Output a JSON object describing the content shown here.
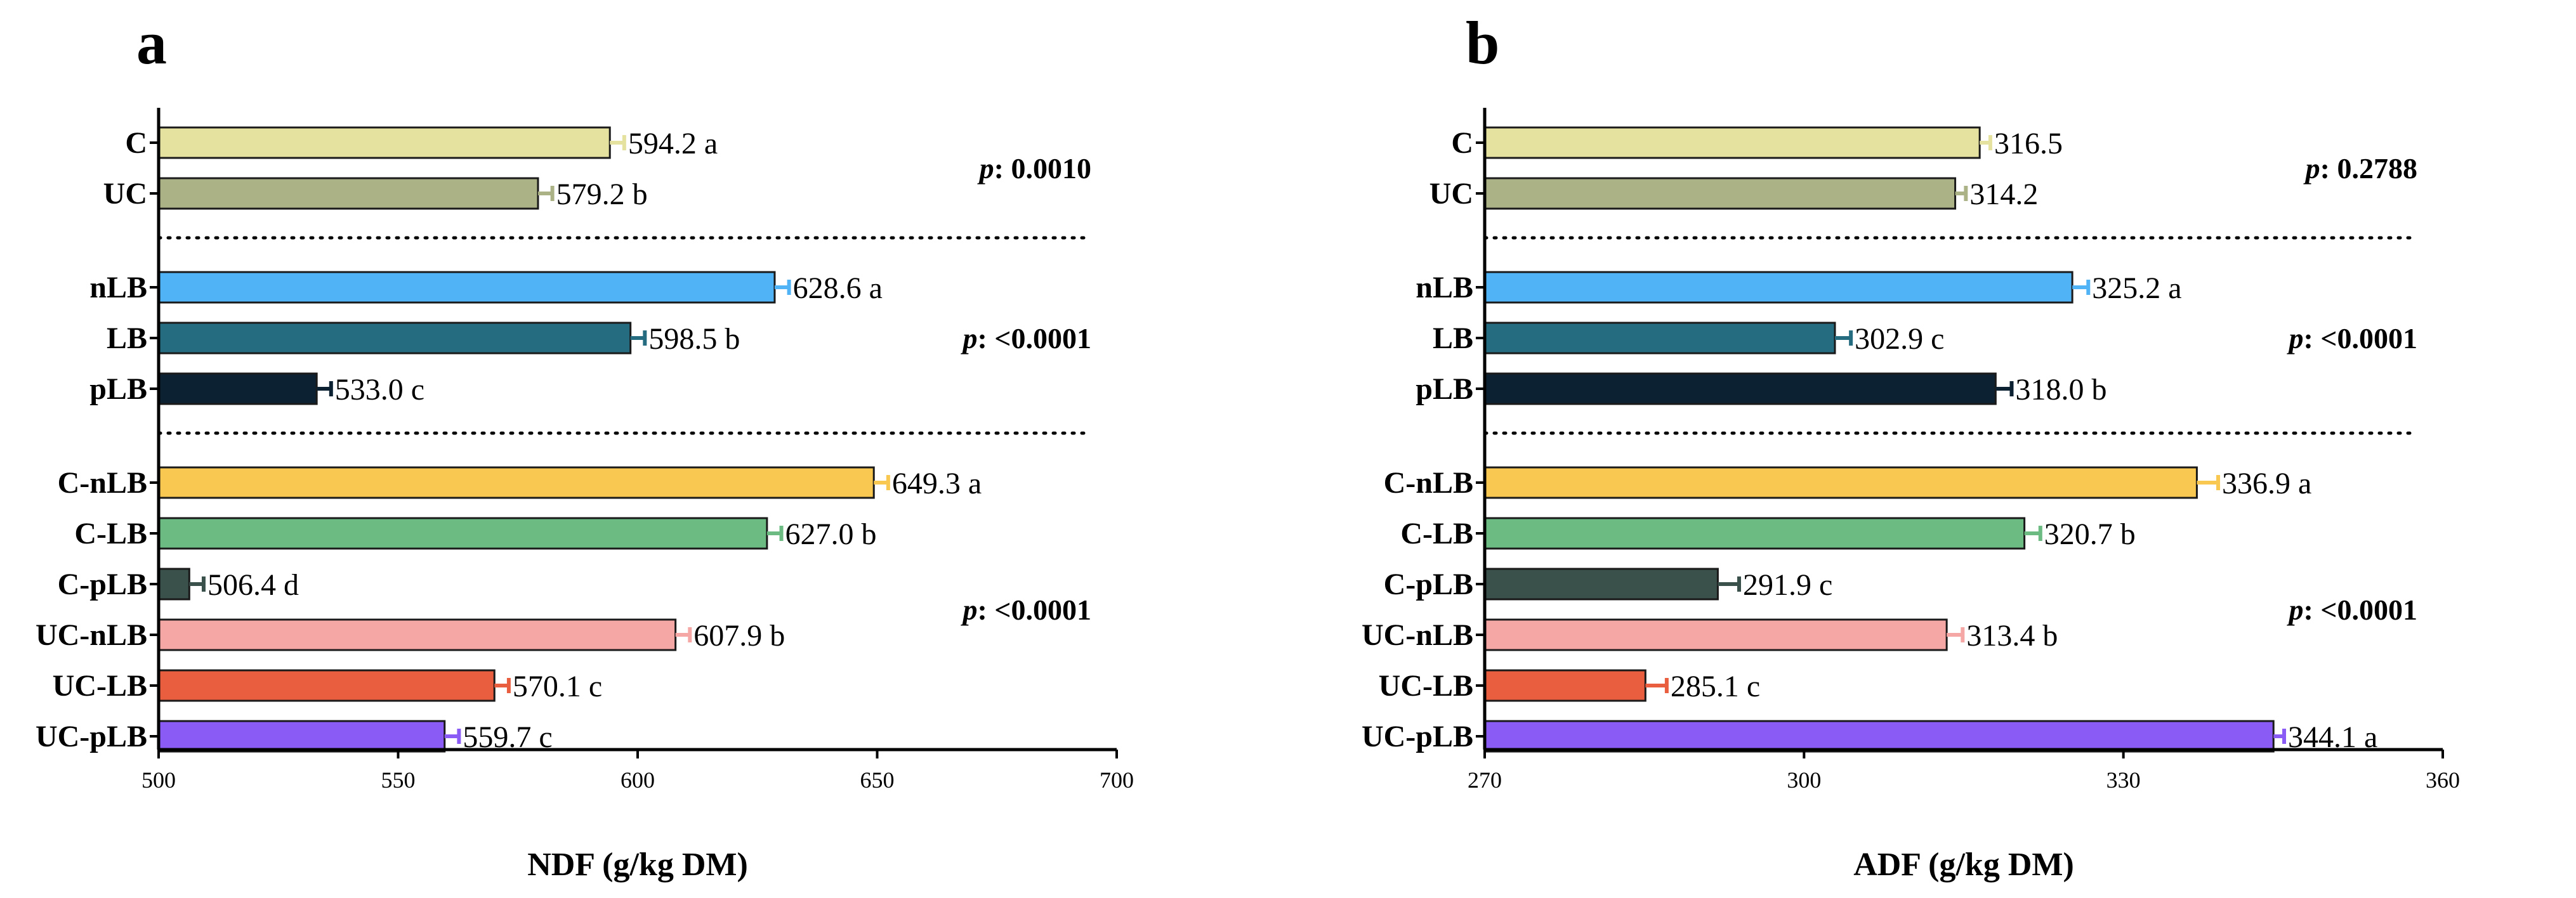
{
  "chart_data": [
    {
      "type": "bar",
      "orientation": "horizontal",
      "panel_letter": "a",
      "xlabel": "NDF (g/kg DM)",
      "xlim": [
        500,
        700
      ],
      "xticks": [
        "500",
        "550",
        "600",
        "650",
        "700"
      ],
      "groups": [
        {
          "p_prefix": "p",
          "p_value": ": 0.0010",
          "bars": [
            {
              "category": "C",
              "value": 594.2,
              "error": 3.0,
              "label": "594.2",
              "letter": "a",
              "color": "#E5E2A0"
            },
            {
              "category": "UC",
              "value": 579.2,
              "error": 3.0,
              "label": "579.2",
              "letter": "b",
              "color": "#ABB285"
            }
          ]
        },
        {
          "p_prefix": "p",
          "p_value": ": <0.0001",
          "bars": [
            {
              "category": "nLB",
              "value": 628.6,
              "error": 3.0,
              "label": "628.6",
              "letter": "a",
              "color": "#4FB3F6"
            },
            {
              "category": "LB",
              "value": 598.5,
              "error": 3.0,
              "label": "598.5",
              "letter": "b",
              "color": "#256C80"
            },
            {
              "category": "pLB",
              "value": 533.0,
              "error": 3.0,
              "label": "533.0",
              "letter": "c",
              "color": "#0C2233"
            }
          ]
        },
        {
          "p_prefix": "p",
          "p_value": ": <0.0001",
          "bars": [
            {
              "category": "C-nLB",
              "value": 649.3,
              "error": 3.0,
              "label": "649.3",
              "letter": "a",
              "color": "#F8C850"
            },
            {
              "category": "C-LB",
              "value": 627.0,
              "error": 3.0,
              "label": "627.0",
              "letter": "b",
              "color": "#6BBB82"
            },
            {
              "category": "C-pLB",
              "value": 506.4,
              "error": 3.0,
              "label": "506.4",
              "letter": "d",
              "color": "#3A504B"
            },
            {
              "category": "UC-nLB",
              "value": 607.9,
              "error": 3.0,
              "label": "607.9",
              "letter": "b",
              "color": "#F4A7A4"
            },
            {
              "category": "UC-LB",
              "value": 570.1,
              "error": 3.0,
              "label": "570.1",
              "letter": "c",
              "color": "#E85E3F"
            },
            {
              "category": "UC-pLB",
              "value": 559.7,
              "error": 3.0,
              "label": "559.7",
              "letter": "c",
              "color": "#8B5CF5"
            }
          ]
        }
      ]
    },
    {
      "type": "bar",
      "orientation": "horizontal",
      "panel_letter": "b",
      "xlabel": "ADF (g/kg DM)",
      "xlim": [
        270,
        360
      ],
      "xticks": [
        "270",
        "300",
        "330",
        "360"
      ],
      "groups": [
        {
          "p_prefix": "p",
          "p_value": ": 0.2788",
          "bars": [
            {
              "category": "C",
              "value": 316.5,
              "error": 1.0,
              "label": "316.5",
              "letter": "",
              "color": "#E5E2A0"
            },
            {
              "category": "UC",
              "value": 314.2,
              "error": 1.0,
              "label": "314.2",
              "letter": "",
              "color": "#ABB285"
            }
          ]
        },
        {
          "p_prefix": "p",
          "p_value": ": <0.0001",
          "bars": [
            {
              "category": "nLB",
              "value": 325.2,
              "error": 1.5,
              "label": "325.2",
              "letter": "a",
              "color": "#4FB3F6"
            },
            {
              "category": "LB",
              "value": 302.9,
              "error": 1.5,
              "label": "302.9",
              "letter": "c",
              "color": "#256C80"
            },
            {
              "category": "pLB",
              "value": 318.0,
              "error": 1.5,
              "label": "318.0",
              "letter": "b",
              "color": "#0C2233"
            }
          ]
        },
        {
          "p_prefix": "p",
          "p_value": ": <0.0001",
          "bars": [
            {
              "category": "C-nLB",
              "value": 336.9,
              "error": 2.0,
              "label": "336.9",
              "letter": "a",
              "color": "#F8C850"
            },
            {
              "category": "C-LB",
              "value": 320.7,
              "error": 1.5,
              "label": "320.7",
              "letter": "b",
              "color": "#6BBB82"
            },
            {
              "category": "C-pLB",
              "value": 291.9,
              "error": 2.0,
              "label": "291.9",
              "letter": "c",
              "color": "#3A504B"
            },
            {
              "category": "UC-nLB",
              "value": 313.4,
              "error": 1.5,
              "label": "313.4",
              "letter": "b",
              "color": "#F4A7A4"
            },
            {
              "category": "UC-LB",
              "value": 285.1,
              "error": 2.0,
              "label": "285.1",
              "letter": "c",
              "color": "#E85E3F"
            },
            {
              "category": "UC-pLB",
              "value": 344.1,
              "error": 1.0,
              "label": "344.1",
              "letter": "a",
              "color": "#8B5CF5"
            }
          ]
        }
      ]
    }
  ]
}
